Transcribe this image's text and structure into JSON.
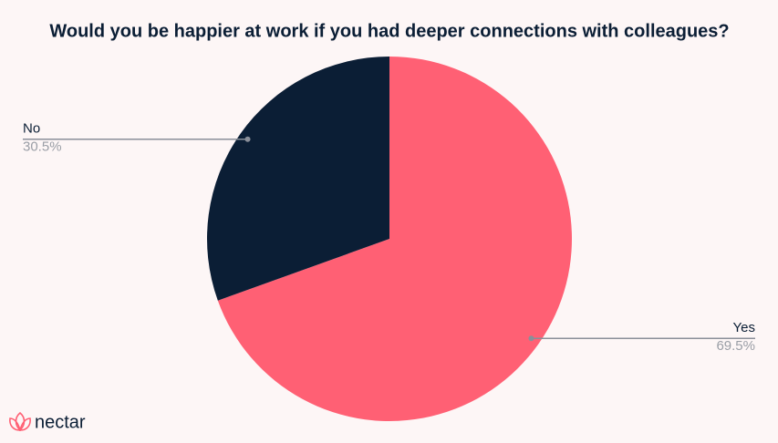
{
  "chart_data": {
    "type": "pie",
    "title": "Would you be happier at work if you had deeper connections with colleagues?",
    "categories": [
      "Yes",
      "No"
    ],
    "values": [
      69.5,
      30.5
    ],
    "value_labels": [
      "69.5%",
      "30.5%"
    ],
    "colors": [
      "#ff6074",
      "#0b1e35"
    ],
    "logo": "nectar"
  }
}
